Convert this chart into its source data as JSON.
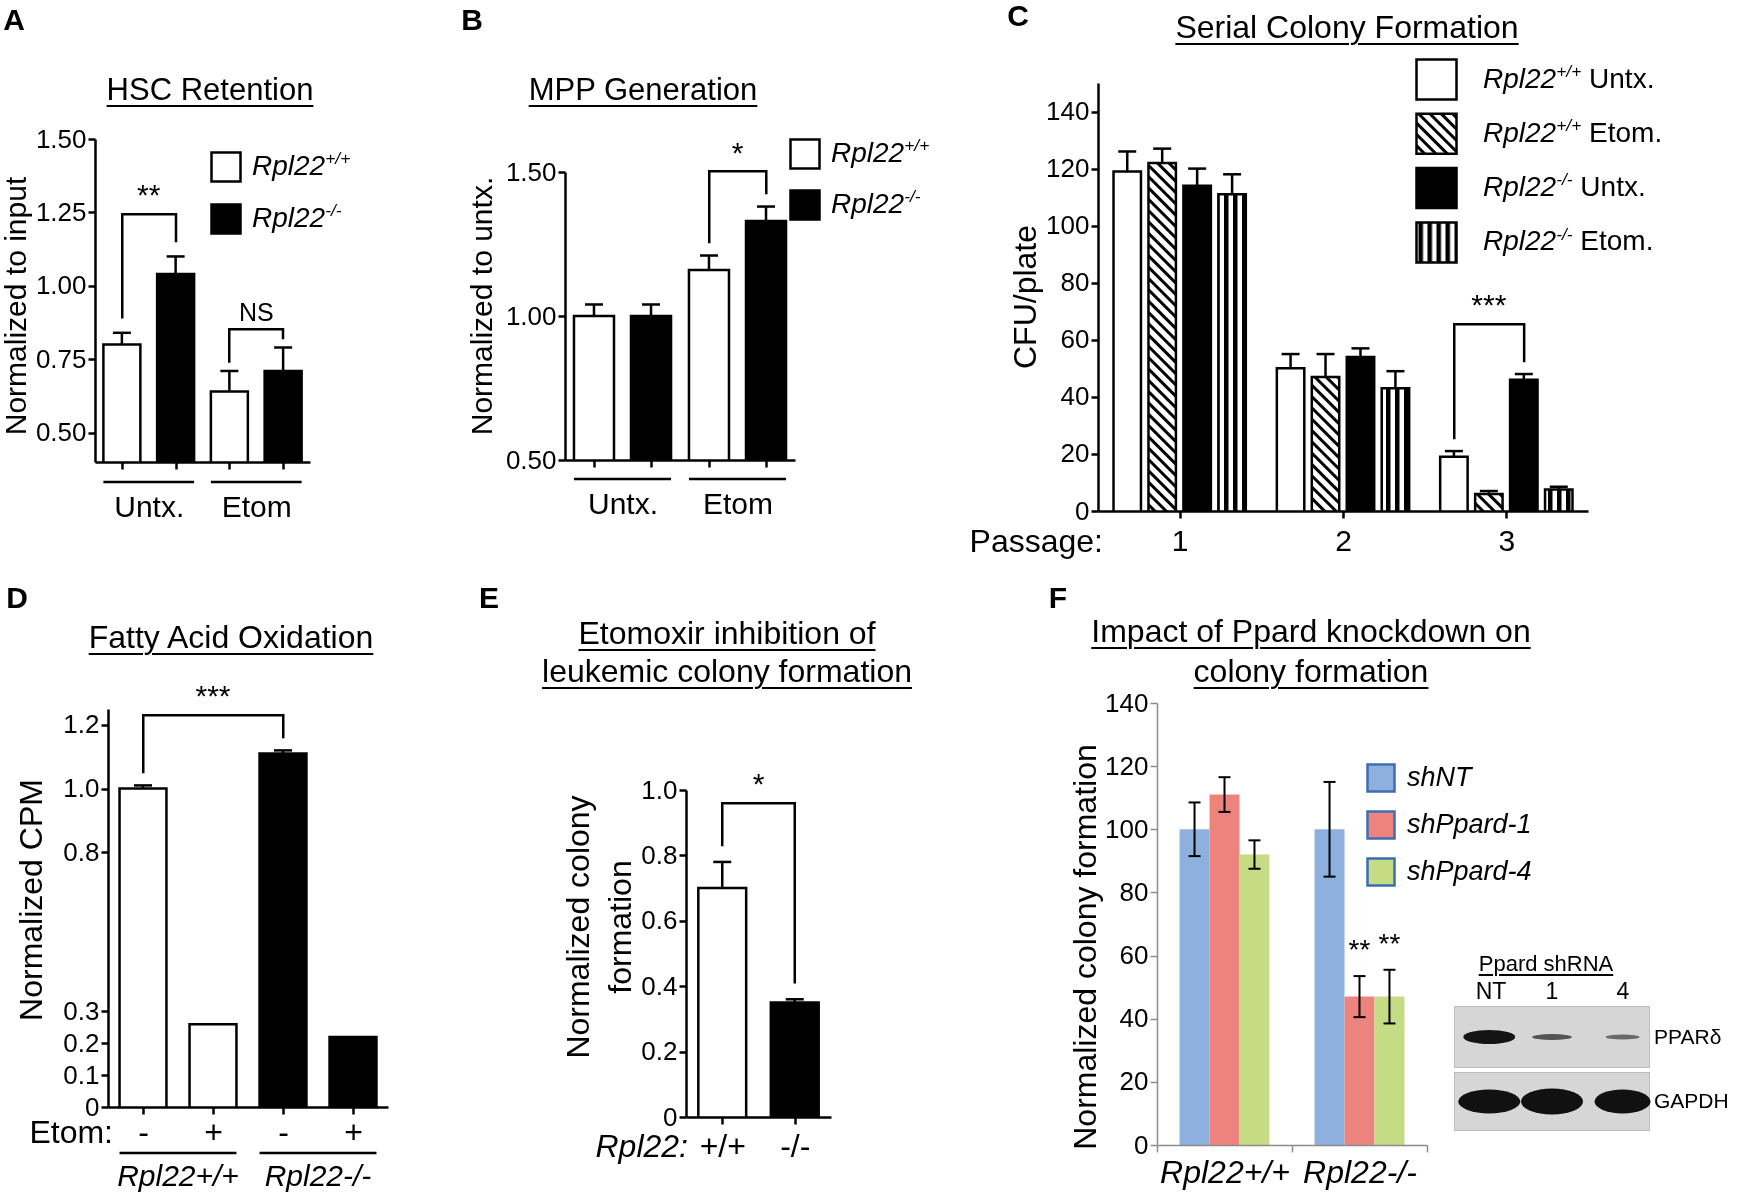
{
  "chart_data": [
    {
      "type": "bar",
      "title": "HSC Retention",
      "ylabel": "Normalized to input",
      "categories": [
        "Untx.",
        "Etom"
      ],
      "series": [
        {
          "name": "Rpl22$^{+/+}$",
          "color": "#ffffff",
          "values": [
            0.8,
            0.64
          ],
          "errors": [
            [
              0.8,
              0.84
            ],
            [
              0.64,
              0.71
            ]
          ]
        },
        {
          "name": "Rpl22$^{-/-}$",
          "color": "#000000",
          "values": [
            1.04,
            0.71
          ],
          "errors": [
            [
              1.04,
              1.1
            ],
            [
              0.71,
              0.79
            ]
          ]
        }
      ],
      "ylim": [
        0.4,
        1.5
      ],
      "yticks": [
        {
          "value": 0.5,
          "label": "0.50"
        },
        0.75,
        {
          "value": 1,
          "label": "1.00"
        },
        1.25,
        {
          "value": 1.5,
          "label": "1.50"
        }
      ],
      "legend": "top right",
      "annotations": [
        "A",
        "**",
        "NS"
      ]
    },
    {
      "type": "bar",
      "title": "MPP Generation",
      "ylabel": "Normalized to untx.",
      "categories": [
        "Untx.",
        "Etom"
      ],
      "series": [
        {
          "name": "Rpl22$^{+/+}$",
          "color": "#ffffff",
          "values": [
            1.0,
            1.16
          ],
          "errors": [
            [
              1.0,
              1.04
            ],
            [
              1.16,
              1.21
            ]
          ]
        },
        {
          "name": "Rpl22$^{-/-}$",
          "color": "#000000",
          "values": [
            1.0,
            1.33
          ],
          "errors": [
            [
              1.0,
              1.04
            ],
            [
              1.33,
              1.38
            ]
          ]
        }
      ],
      "ylim": [
        0.5,
        1.5
      ],
      "yticks": [
        {
          "value": 0.5,
          "label": "0.50"
        },
        {
          "value": 1,
          "label": "1.00"
        },
        {
          "value": 1.5,
          "label": "1.50"
        }
      ],
      "legend": "top right",
      "annotations": [
        "B",
        "*"
      ]
    },
    {
      "type": "bar",
      "title": "Serial Colony Formation",
      "xlabel": "Passage:",
      "ylabel": "CFU/plate",
      "categories": [
        "1",
        "2",
        "3"
      ],
      "series": [
        {
          "name": "Rpl22$^{+/+}$ Untx.",
          "color": "#ffffff",
          "values": [
            119,
            50,
            19
          ],
          "errors": [
            [
              119,
              126
            ],
            [
              50,
              55
            ],
            [
              19,
              21
            ]
          ]
        },
        {
          "name": "Rpl22$^{+/+}$ Etom.",
          "color": "#000000",
          "values": [
            122,
            47,
            6
          ],
          "errors": [
            [
              122,
              127
            ],
            [
              47,
              55
            ],
            [
              6,
              7
            ]
          ]
        },
        {
          "name": "Rpl22$^{-/-}$ Untx.",
          "color": "#000000",
          "values": [
            114,
            54,
            46
          ],
          "errors": [
            [
              114,
              120
            ],
            [
              54,
              57
            ],
            [
              46,
              48
            ]
          ]
        },
        {
          "name": "Rpl22$^{-/-}$ Etom.",
          "color": "#000000",
          "values": [
            111,
            43,
            7.5
          ],
          "errors": [
            [
              111,
              118
            ],
            [
              43,
              49
            ],
            [
              7.5,
              8.5
            ]
          ]
        }
      ],
      "ylim": [
        0,
        150
      ],
      "yticks": [
        0,
        20,
        40,
        60,
        80,
        100,
        120,
        140
      ],
      "legend": "top right",
      "annotations": [
        "C",
        "***"
      ]
    },
    {
      "type": "bar",
      "title": "Fatty Acid Oxidation",
      "xlabel": "Etom:",
      "ylabel": "Normalized CPM",
      "categories": [
        "-",
        "+",
        "-",
        "+"
      ],
      "values": [
        1.0,
        0.26,
        1.11,
        0.22
      ],
      "colors": [
        "#ffffff",
        "#ffffff",
        "#000000",
        "#000000"
      ],
      "errors": [
        [
          1.0,
          1.01
        ],
        null,
        [
          1.11,
          1.12
        ],
        null
      ],
      "ylim": [
        0,
        1.25
      ],
      "yticks": [
        0,
        0.1,
        0.2,
        0.3,
        0.8,
        {
          "value": 1,
          "label": "1.0"
        },
        1.2
      ],
      "annotations": [
        "D",
        "***",
        "Rpl22+/+",
        "Rpl22-/-"
      ]
    },
    {
      "type": "bar",
      "title": "Etomoxir inhibition of leukemic colony formation",
      "ylabel": "Normalized colony formation",
      "xlabel": "Rpl22:",
      "categories": [
        "+/+",
        "-/-"
      ],
      "values": [
        0.7,
        0.35
      ],
      "colors": [
        "#ffffff",
        "#000000"
      ],
      "errors": [
        [
          0.7,
          0.78
        ],
        [
          0.35,
          0.36
        ]
      ],
      "ylim": [
        0,
        1
      ],
      "yticks": [
        0,
        0.2,
        0.4,
        0.6,
        0.8,
        {
          "value": 1,
          "label": "1.0"
        }
      ],
      "annotations": [
        "E",
        "*"
      ]
    },
    {
      "type": "bar",
      "title": "Impact of Ppard knockdown on colony formation",
      "ylabel": "Normalized colony formation",
      "categories": [
        "Rpl22+/+",
        "Rpl22-/-"
      ],
      "series": [
        {
          "name": "shNT",
          "color": "#8eb0de",
          "values": [
            100,
            100
          ],
          "errors": [
            8.5,
            15
          ]
        },
        {
          "name": "shPpard-1",
          "color": "#ec847d",
          "values": [
            111,
            47
          ],
          "errors": [
            5.5,
            6.5
          ]
        },
        {
          "name": "shPpard-4",
          "color": "#c6dc84",
          "values": [
            92,
            47
          ],
          "errors": [
            4.5,
            8.5
          ]
        }
      ],
      "ylim": [
        0,
        140
      ],
      "yticks": [
        0,
        20,
        40,
        60,
        80,
        100,
        120,
        140
      ],
      "legend": "top right",
      "annotations": [
        "F",
        "**",
        "**",
        "Ppard shRNA",
        "NT",
        "1",
        "4",
        "PPARδ",
        "GAPDH"
      ]
    }
  ]
}
